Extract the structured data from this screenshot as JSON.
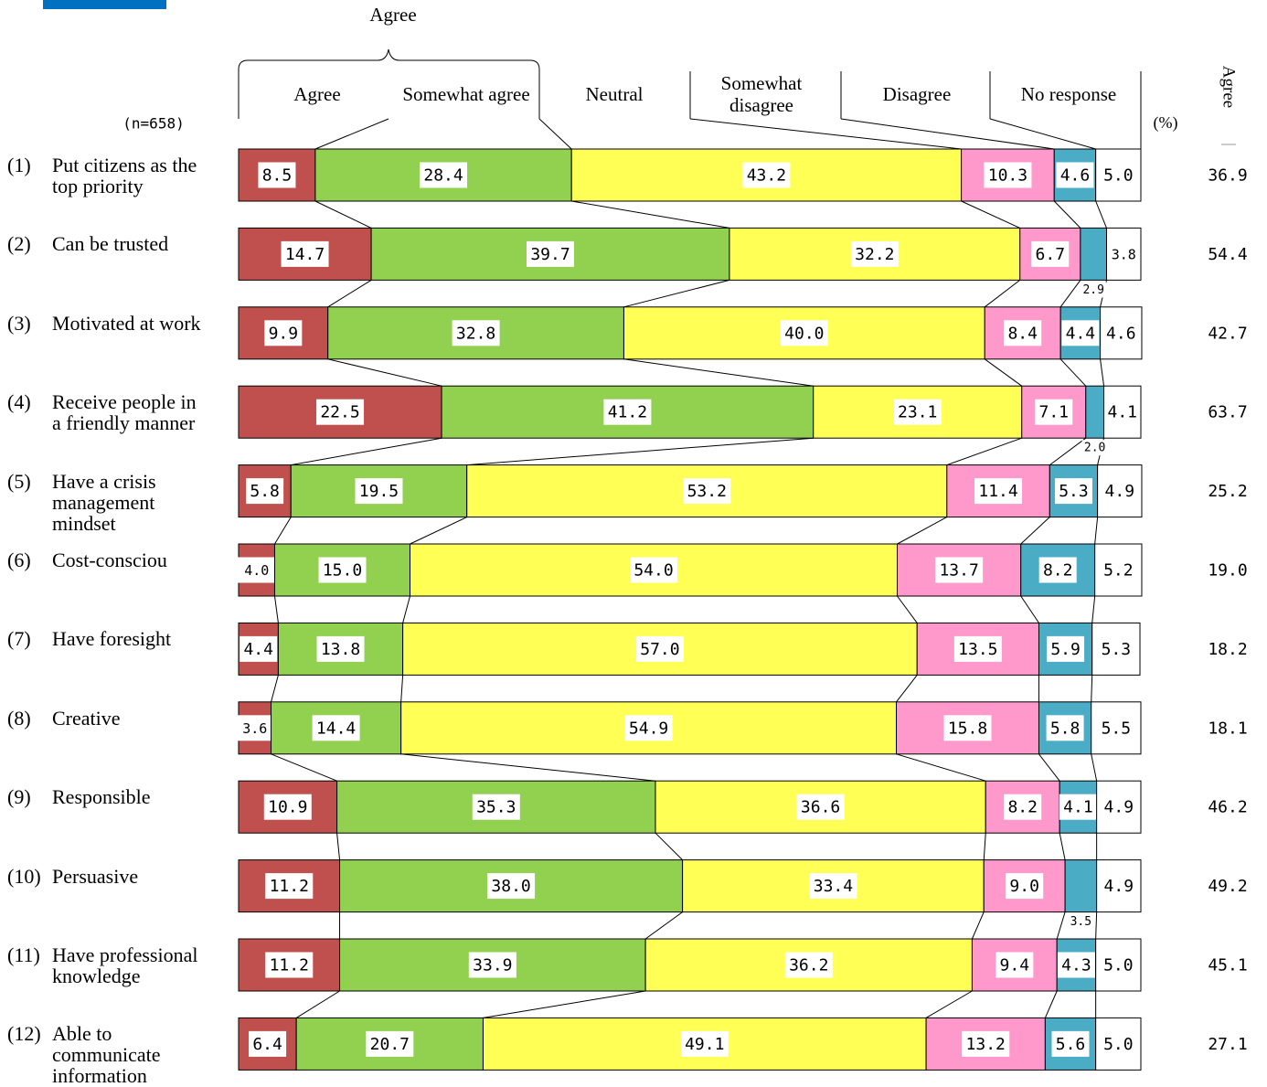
{
  "chart_data": {
    "type": "stacked-bar-100",
    "title": "Agree",
    "sample_label": "(n=658)",
    "unit_label": "(%)",
    "row_numbers": [
      "(1)",
      "(2)",
      "(3)",
      "(4)",
      "(5)",
      "(6)",
      "(7)",
      "(8)",
      "(9)",
      "(10)",
      "(11)",
      "(12)"
    ],
    "categories": [
      "Put citizens as the top priority",
      "Can be trusted",
      "Motivated at work",
      "Receive people in a friendly manner",
      "Have a crisis management mindset",
      "Cost-consciou",
      "Have foresight",
      "Creative",
      "Responsible",
      "Persuasive",
      "Have professional knowledge",
      "Able to communicate information"
    ],
    "xlim": [
      0,
      100
    ],
    "series": [
      {
        "name": "Agree",
        "color": "#c0504d",
        "values": [
          8.5,
          14.7,
          9.9,
          22.5,
          5.8,
          4.0,
          4.4,
          3.6,
          10.9,
          11.2,
          11.2,
          6.4
        ],
        "value_labels": [
          "8.5",
          "14.7",
          "9.9",
          "22.5",
          "5.8",
          "4.0",
          "4.4",
          "3.6",
          "10.9",
          "11.2",
          "11.2",
          "6.4"
        ]
      },
      {
        "name": "Somewhat agree",
        "color": "#92d050",
        "values": [
          28.4,
          39.7,
          32.8,
          41.2,
          19.5,
          15.0,
          13.8,
          14.4,
          35.3,
          38.0,
          33.9,
          20.7
        ],
        "value_labels": [
          "28.4",
          "39.7",
          "32.8",
          "41.2",
          "19.5",
          "15.0",
          "13.8",
          "14.4",
          "35.3",
          "38.0",
          "33.9",
          "20.7"
        ]
      },
      {
        "name": "Neutral",
        "color": "#ffff55",
        "values": [
          43.2,
          32.2,
          40.0,
          23.1,
          53.2,
          54.0,
          57.0,
          54.9,
          36.6,
          33.4,
          36.2,
          49.1
        ],
        "value_labels": [
          "43.2",
          "32.2",
          "40.0",
          "23.1",
          "53.2",
          "54.0",
          "57.0",
          "54.9",
          "36.6",
          "33.4",
          "36.2",
          "49.1"
        ]
      },
      {
        "name": "Somewhat disagree",
        "color": "#ff99cc",
        "values": [
          10.3,
          6.7,
          8.4,
          7.1,
          11.4,
          13.7,
          13.5,
          15.8,
          8.2,
          9.0,
          9.4,
          13.2
        ],
        "value_labels": [
          "10.3",
          "6.7",
          "8.4",
          "7.1",
          "11.4",
          "13.7",
          "13.5",
          "15.8",
          "8.2",
          "9.0",
          "9.4",
          "13.2"
        ]
      },
      {
        "name": "Disagree",
        "color": "#4bacc6",
        "values": [
          4.6,
          2.9,
          4.4,
          2.0,
          5.3,
          8.2,
          5.9,
          5.8,
          4.1,
          3.5,
          4.3,
          5.6
        ],
        "value_labels": [
          "4.6",
          "2.9",
          "4.4",
          "2.0",
          "5.3",
          "8.2",
          "5.9",
          "5.8",
          "4.1",
          "3.5",
          "4.3",
          "5.6"
        ]
      },
      {
        "name": "No response",
        "color": "#ffffff",
        "values": [
          5.0,
          3.8,
          4.6,
          4.1,
          4.9,
          5.2,
          5.3,
          5.5,
          4.9,
          4.9,
          5.0,
          5.0
        ],
        "value_labels": [
          "5.0",
          "3.8",
          "4.6",
          "4.1",
          "4.9",
          "5.2",
          "5.3",
          "5.5",
          "4.9",
          "4.9",
          "5.0",
          "5.0"
        ]
      }
    ],
    "agree_total": {
      "name": "Agree",
      "values": [
        36.9,
        54.4,
        42.7,
        63.7,
        25.2,
        19.0,
        18.2,
        18.1,
        46.2,
        49.2,
        45.1,
        27.1
      ],
      "value_labels": [
        "36.9",
        "54.4",
        "42.7",
        "63.7",
        "25.2",
        "19.0",
        "18.2",
        "18.1",
        "46.2",
        "49.2",
        "45.1",
        "27.1"
      ]
    }
  }
}
